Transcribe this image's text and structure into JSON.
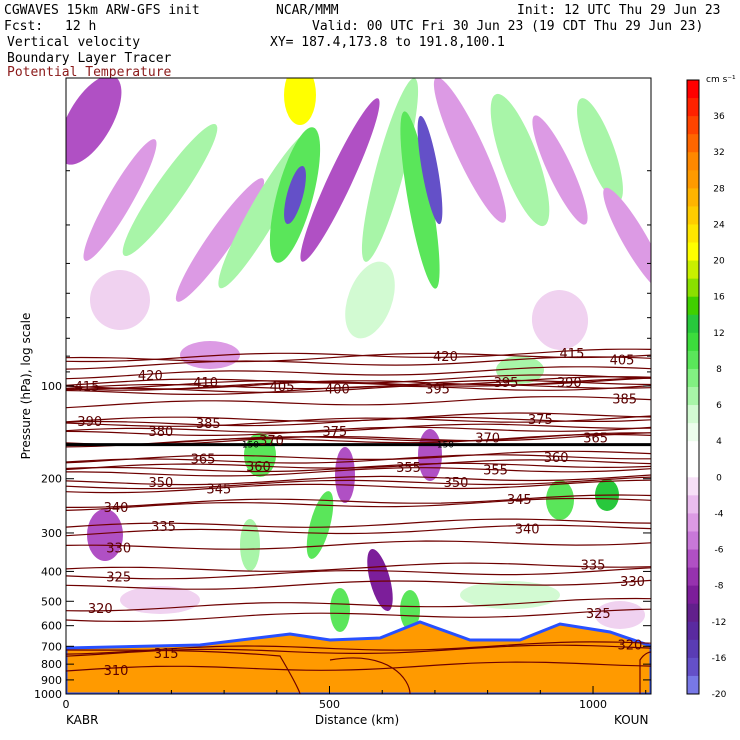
{
  "header": {
    "model": "CGWAVES 15km ARW-GFS init",
    "org": "NCAR/MMM",
    "init": "Init: 12 UTC Thu 29 Jun 23",
    "fcst_label": "Fcst:",
    "fcst_value": "12 h",
    "valid": "Valid: 00 UTC Fri 30 Jun 23 (19 CDT Thu 29 Jun 23)",
    "field1": "Vertical velocity",
    "xy": "XY= 187.4,173.8 to 191.8,100.1",
    "field2": "Boundary Layer Tracer",
    "field3": "Potential Temperature",
    "field3_color": "#8b1a1a"
  },
  "axes": {
    "ylabel": "Pressure (hPa), log scale",
    "xlabel": "Distance (km)",
    "left_station": "KABR",
    "right_station": "KOUN"
  },
  "colorbar": {
    "unit_label": "cm s⁻¹",
    "bins": [
      {
        "label": "",
        "color": "#ff0000"
      },
      {
        "label": "36",
        "color": "#ff2200"
      },
      {
        "label": "",
        "color": "#ff4400"
      },
      {
        "label": "32",
        "color": "#ff6600"
      },
      {
        "label": "",
        "color": "#ff8800"
      },
      {
        "label": "28",
        "color": "#ff9a00"
      },
      {
        "label": "",
        "color": "#ffb400"
      },
      {
        "label": "24",
        "color": "#ffcc00"
      },
      {
        "label": "",
        "color": "#ffe600"
      },
      {
        "label": "20",
        "color": "#ffff00"
      },
      {
        "label": "",
        "color": "#c8f000"
      },
      {
        "label": "16",
        "color": "#8ae000"
      },
      {
        "label": "",
        "color": "#40d000"
      },
      {
        "label": "12",
        "color": "#28c83c"
      },
      {
        "label": "",
        "color": "#3cdc3c"
      },
      {
        "label": "8",
        "color": "#5ae65a"
      },
      {
        "label": "",
        "color": "#82f082"
      },
      {
        "label": "6",
        "color": "#a8f5a8"
      },
      {
        "label": "",
        "color": "#d2fad2"
      },
      {
        "label": "4",
        "color": "#ecfdec"
      },
      {
        "label": "",
        "color": "#ffffff"
      },
      {
        "label": "0",
        "color": "#ffffff"
      },
      {
        "label": "",
        "color": "#f7e0f7"
      },
      {
        "label": "-4",
        "color": "#eabcee"
      },
      {
        "label": "",
        "color": "#dc9ae4"
      },
      {
        "label": "-6",
        "color": "#c878d8"
      },
      {
        "label": "",
        "color": "#b050c4"
      },
      {
        "label": "-8",
        "color": "#9632ae"
      },
      {
        "label": "",
        "color": "#7c1e9a"
      },
      {
        "label": "-12",
        "color": "#62208c"
      },
      {
        "label": "",
        "color": "#5a2aa0"
      },
      {
        "label": "-16",
        "color": "#5a3cb4"
      },
      {
        "label": "",
        "color": "#6450c8"
      },
      {
        "label": "-20",
        "color": "#7878e6"
      }
    ]
  },
  "chart_data": {
    "type": "heatmap",
    "title": "",
    "xlabel": "Distance (km)",
    "ylabel": "Pressure (hPa), log scale",
    "x_range": [
      0,
      1110
    ],
    "y_range_hpa": [
      1000,
      10
    ],
    "y_scale": "log",
    "x_ticks": [
      0,
      500,
      1000
    ],
    "y_ticks": [
      100,
      200,
      300,
      400,
      500,
      600,
      700,
      800,
      900,
      1000
    ],
    "shaded_field": "Vertical velocity (cm s⁻¹)",
    "contour_field": "Potential Temperature (K)",
    "tracer_contour_label": "150",
    "tropopause_pressure_hpa": 155,
    "isentropes": [
      {
        "label": "415",
        "x": 40,
        "p": 100
      },
      {
        "label": "420",
        "x": 160,
        "p": 92
      },
      {
        "label": "410",
        "x": 265,
        "p": 97
      },
      {
        "label": "405",
        "x": 410,
        "p": 100
      },
      {
        "label": "400",
        "x": 515,
        "p": 102
      },
      {
        "label": "420",
        "x": 720,
        "p": 80
      },
      {
        "label": "395",
        "x": 705,
        "p": 102
      },
      {
        "label": "395",
        "x": 835,
        "p": 97
      },
      {
        "label": "390",
        "x": 955,
        "p": 97
      },
      {
        "label": "415",
        "x": 960,
        "p": 78
      },
      {
        "label": "405",
        "x": 1055,
        "p": 82
      },
      {
        "label": "385",
        "x": 1060,
        "p": 110
      },
      {
        "label": "390",
        "x": 45,
        "p": 130
      },
      {
        "label": "380",
        "x": 180,
        "p": 140
      },
      {
        "label": "385",
        "x": 270,
        "p": 132
      },
      {
        "label": "375",
        "x": 510,
        "p": 140
      },
      {
        "label": "375",
        "x": 900,
        "p": 128
      },
      {
        "label": "370",
        "x": 390,
        "p": 150
      },
      {
        "label": "370",
        "x": 800,
        "p": 147
      },
      {
        "label": "365",
        "x": 1005,
        "p": 147
      },
      {
        "label": "365",
        "x": 260,
        "p": 172
      },
      {
        "label": "360",
        "x": 365,
        "p": 182
      },
      {
        "label": "360",
        "x": 930,
        "p": 170
      },
      {
        "label": "355",
        "x": 650,
        "p": 183
      },
      {
        "label": "355",
        "x": 815,
        "p": 187
      },
      {
        "label": "350",
        "x": 180,
        "p": 205
      },
      {
        "label": "350",
        "x": 740,
        "p": 205
      },
      {
        "label": "345",
        "x": 290,
        "p": 215
      },
      {
        "label": "345",
        "x": 860,
        "p": 233
      },
      {
        "label": "340",
        "x": 95,
        "p": 247
      },
      {
        "label": "340",
        "x": 875,
        "p": 290
      },
      {
        "label": "335",
        "x": 185,
        "p": 285
      },
      {
        "label": "335",
        "x": 1000,
        "p": 380
      },
      {
        "label": "330",
        "x": 100,
        "p": 335
      },
      {
        "label": "330",
        "x": 1075,
        "p": 430
      },
      {
        "label": "325",
        "x": 100,
        "p": 415
      },
      {
        "label": "325",
        "x": 1010,
        "p": 545
      },
      {
        "label": "320",
        "x": 65,
        "p": 525
      },
      {
        "label": "320",
        "x": 1070,
        "p": 690
      },
      {
        "label": "315",
        "x": 190,
        "p": 735
      },
      {
        "label": "310",
        "x": 95,
        "p": 835
      }
    ]
  }
}
